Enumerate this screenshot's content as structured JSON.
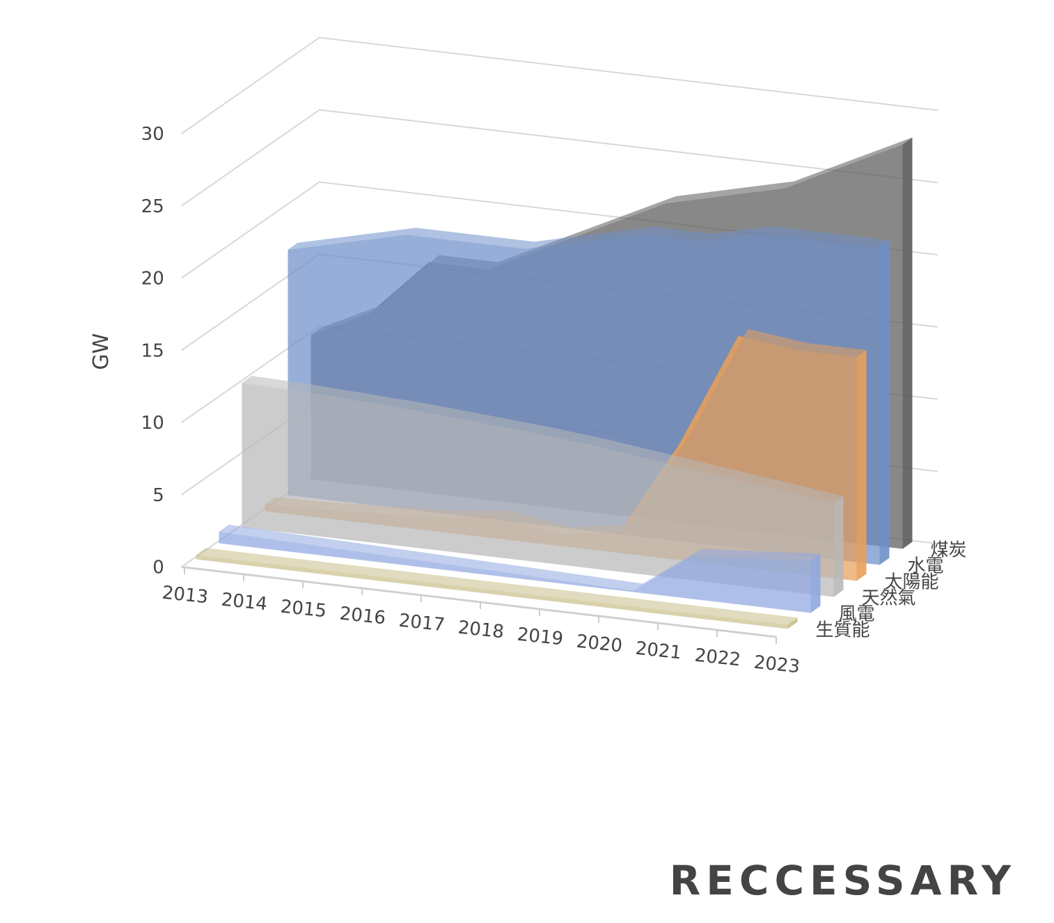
{
  "chart_data": {
    "type": "area3d",
    "y_label": "GW",
    "categories": [
      "2013",
      "2014",
      "2015",
      "2016",
      "2017",
      "2018",
      "2019",
      "2020",
      "2021",
      "2022",
      "2023"
    ],
    "series": [
      {
        "name": "生質能",
        "color": "#c9bf8a",
        "values": [
          0.3,
          0.3,
          0.3,
          0.3,
          0.3,
          0.3,
          0.3,
          0.3,
          0.3,
          0.3,
          0.3
        ]
      },
      {
        "name": "風電",
        "color": "#8fa7e0",
        "values": [
          0.8,
          0.7,
          0.6,
          0.5,
          0.4,
          0.3,
          0.2,
          0.1,
          3,
          3.3,
          3.6
        ]
      },
      {
        "name": "天然氣",
        "color": "#b8b8b8",
        "values": [
          10,
          9.9,
          9.7,
          9.5,
          9.2,
          8.9,
          8.5,
          8,
          7.5,
          7,
          6.5
        ]
      },
      {
        "name": "太陽能",
        "color": "#e8a05a",
        "values": [
          0.5,
          0.6,
          0.8,
          1,
          1.5,
          0.8,
          1.5,
          8,
          16,
          15.5,
          15.5
        ]
      },
      {
        "name": "水電",
        "color": "#6d8fc9",
        "values": [
          17,
          18,
          19,
          19,
          19,
          20,
          21,
          21,
          22,
          22,
          22
        ]
      },
      {
        "name": "煤炭",
        "color": "#5a5a5a",
        "values": [
          10,
          12,
          16,
          16,
          18,
          20,
          22,
          23,
          24,
          26,
          28
        ]
      }
    ],
    "ylim": [
      0,
      30
    ],
    "yticks": [
      0,
      5,
      10,
      15,
      20,
      25,
      30
    ],
    "grid": true,
    "watermark": "RECCESSARY"
  }
}
